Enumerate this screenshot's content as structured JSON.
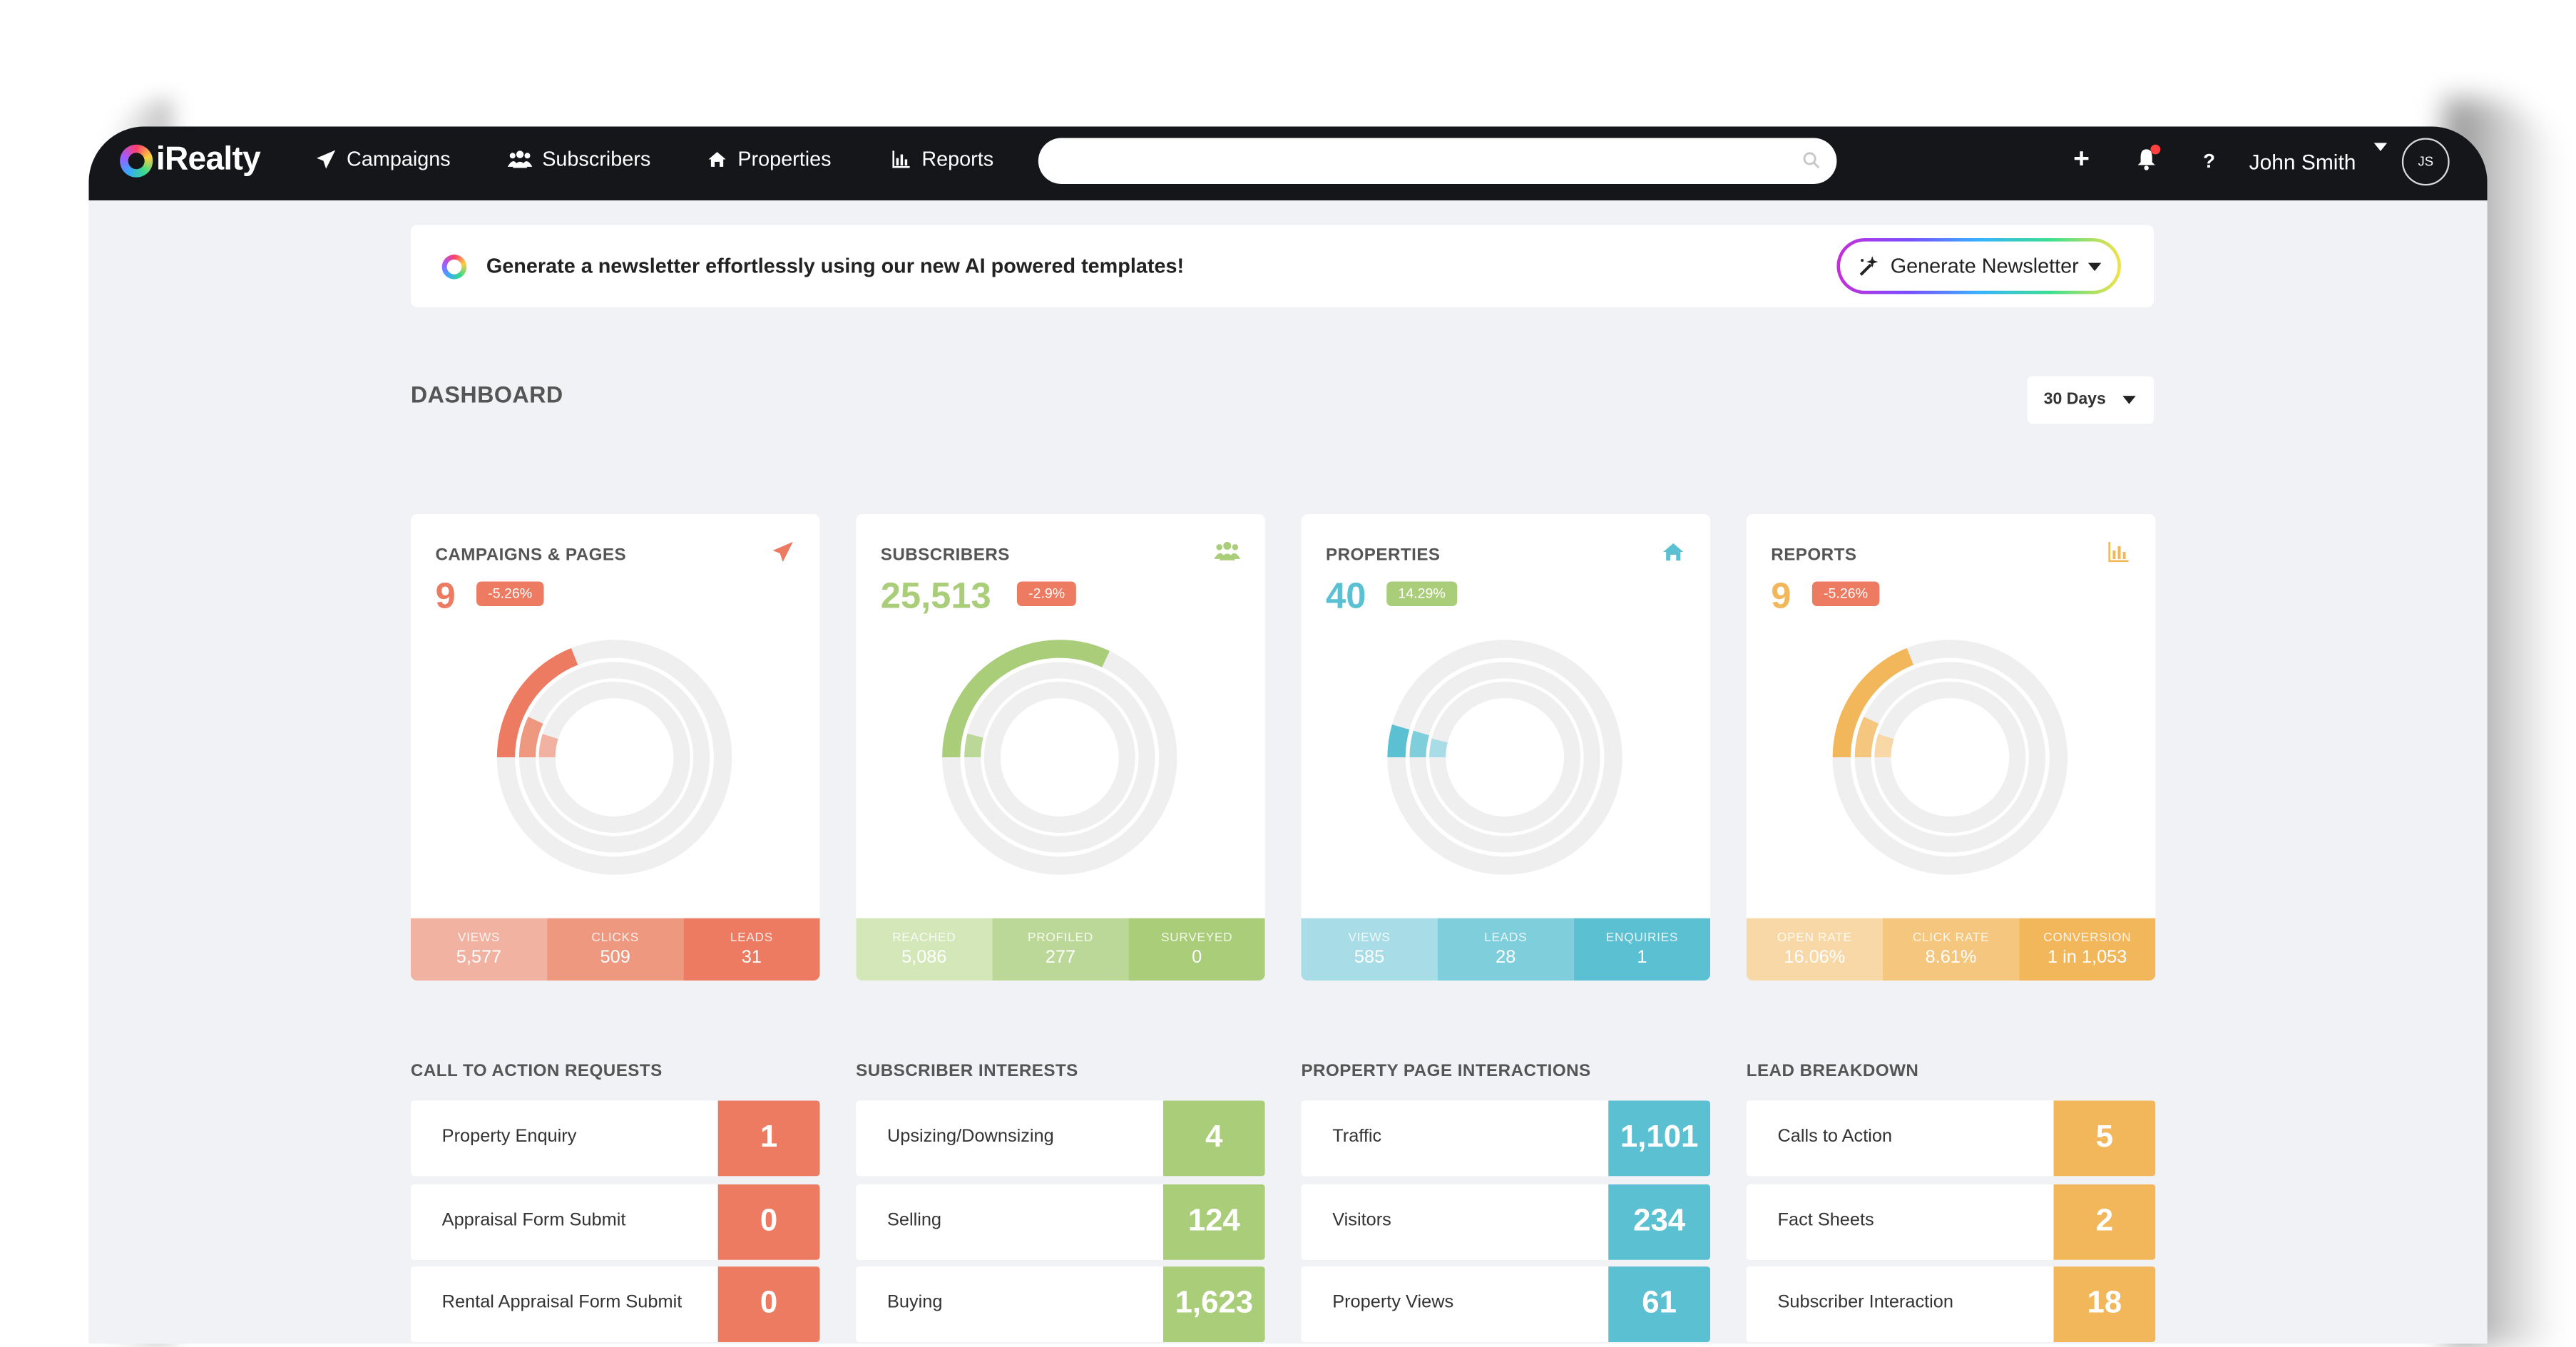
{
  "nav": {
    "logo": "iRealty",
    "items": [
      {
        "label": "Campaigns",
        "icon": "paper-plane-icon"
      },
      {
        "label": "Subscribers",
        "icon": "users-icon"
      },
      {
        "label": "Properties",
        "icon": "home-icon"
      },
      {
        "label": "Reports",
        "icon": "bar-chart-icon"
      }
    ],
    "search": {
      "value": "",
      "placeholder": ""
    },
    "plus": "+",
    "help": "?",
    "user_name": "John Smith",
    "user_initials": "JS"
  },
  "banner": {
    "text": "Generate a newsletter effortlessly using our new AI powered templates!",
    "button_label": "Generate Newsletter"
  },
  "dashboard": {
    "title": "DASHBOARD",
    "range": "30 Days"
  },
  "cards": [
    {
      "title": "CAMPAIGNS & PAGES",
      "value": "9",
      "change": "-5.26%",
      "icon": "paper-plane-icon",
      "color": "#ed7b62",
      "light": "#f2b2a2",
      "mid": "#ee9880",
      "badge_color": "#ed7b62",
      "arcs": [
        0.19,
        0.07,
        0.05
      ],
      "stats": [
        {
          "label": "VIEWS",
          "value": "5,577"
        },
        {
          "label": "CLICKS",
          "value": "509"
        },
        {
          "label": "LEADS",
          "value": "31"
        }
      ]
    },
    {
      "title": "SUBSCRIBERS",
      "value": "25,513",
      "change": "-2.9%",
      "icon": "users-icon",
      "color": "#a9cd78",
      "light": "#d3e7b9",
      "mid": "#bcd898",
      "badge_color": "#ed7b62",
      "arcs": [
        0.32,
        0.04,
        0.0
      ],
      "stats": [
        {
          "label": "REACHED",
          "value": "5,086"
        },
        {
          "label": "PROFILED",
          "value": "277"
        },
        {
          "label": "SURVEYED",
          "value": "0"
        }
      ]
    },
    {
      "title": "PROPERTIES",
      "value": "40",
      "change": "14.29%",
      "icon": "home-icon",
      "color": "#5bc0d2",
      "light": "#a8dde7",
      "mid": "#7ecedc",
      "badge_color": "#a9cd78",
      "arcs": [
        0.045,
        0.045,
        0.04
      ],
      "stats": [
        {
          "label": "VIEWS",
          "value": "585"
        },
        {
          "label": "LEADS",
          "value": "28"
        },
        {
          "label": "ENQUIRIES",
          "value": "1"
        }
      ]
    },
    {
      "title": "REPORTS",
      "value": "9",
      "change": "-5.26%",
      "icon": "bar-chart-icon",
      "color": "#f3b75b",
      "light": "#f8d8a6",
      "mid": "#f5c67e",
      "badge_color": "#ed7b62",
      "arcs": [
        0.19,
        0.07,
        0.05
      ],
      "stats": [
        {
          "label": "OPEN RATE",
          "value": "16.06%"
        },
        {
          "label": "CLICK RATE",
          "value": "8.61%"
        },
        {
          "label": "CONVERSION",
          "value": "1 in 1,053"
        }
      ]
    }
  ],
  "sections": [
    {
      "title": "CALL TO ACTION REQUESTS",
      "color": "#ed7b62",
      "rows": [
        {
          "label": "Property Enquiry",
          "value": "1"
        },
        {
          "label": "Appraisal Form Submit",
          "value": "0"
        },
        {
          "label": "Rental Appraisal Form Submit",
          "value": "0"
        }
      ]
    },
    {
      "title": "SUBSCRIBER INTERESTS",
      "color": "#a9cd78",
      "rows": [
        {
          "label": "Upsizing/Downsizing",
          "value": "4"
        },
        {
          "label": "Selling",
          "value": "124"
        },
        {
          "label": "Buying",
          "value": "1,623"
        }
      ]
    },
    {
      "title": "PROPERTY PAGE INTERACTIONS",
      "color": "#5bc0d2",
      "rows": [
        {
          "label": "Traffic",
          "value": "1,101"
        },
        {
          "label": "Visitors",
          "value": "234"
        },
        {
          "label": "Property Views",
          "value": "61"
        }
      ]
    },
    {
      "title": "LEAD BREAKDOWN",
      "color": "#f3b75b",
      "rows": [
        {
          "label": "Calls to Action",
          "value": "5"
        },
        {
          "label": "Fact Sheets",
          "value": "2"
        },
        {
          "label": "Subscriber Interaction",
          "value": "18"
        }
      ]
    }
  ]
}
